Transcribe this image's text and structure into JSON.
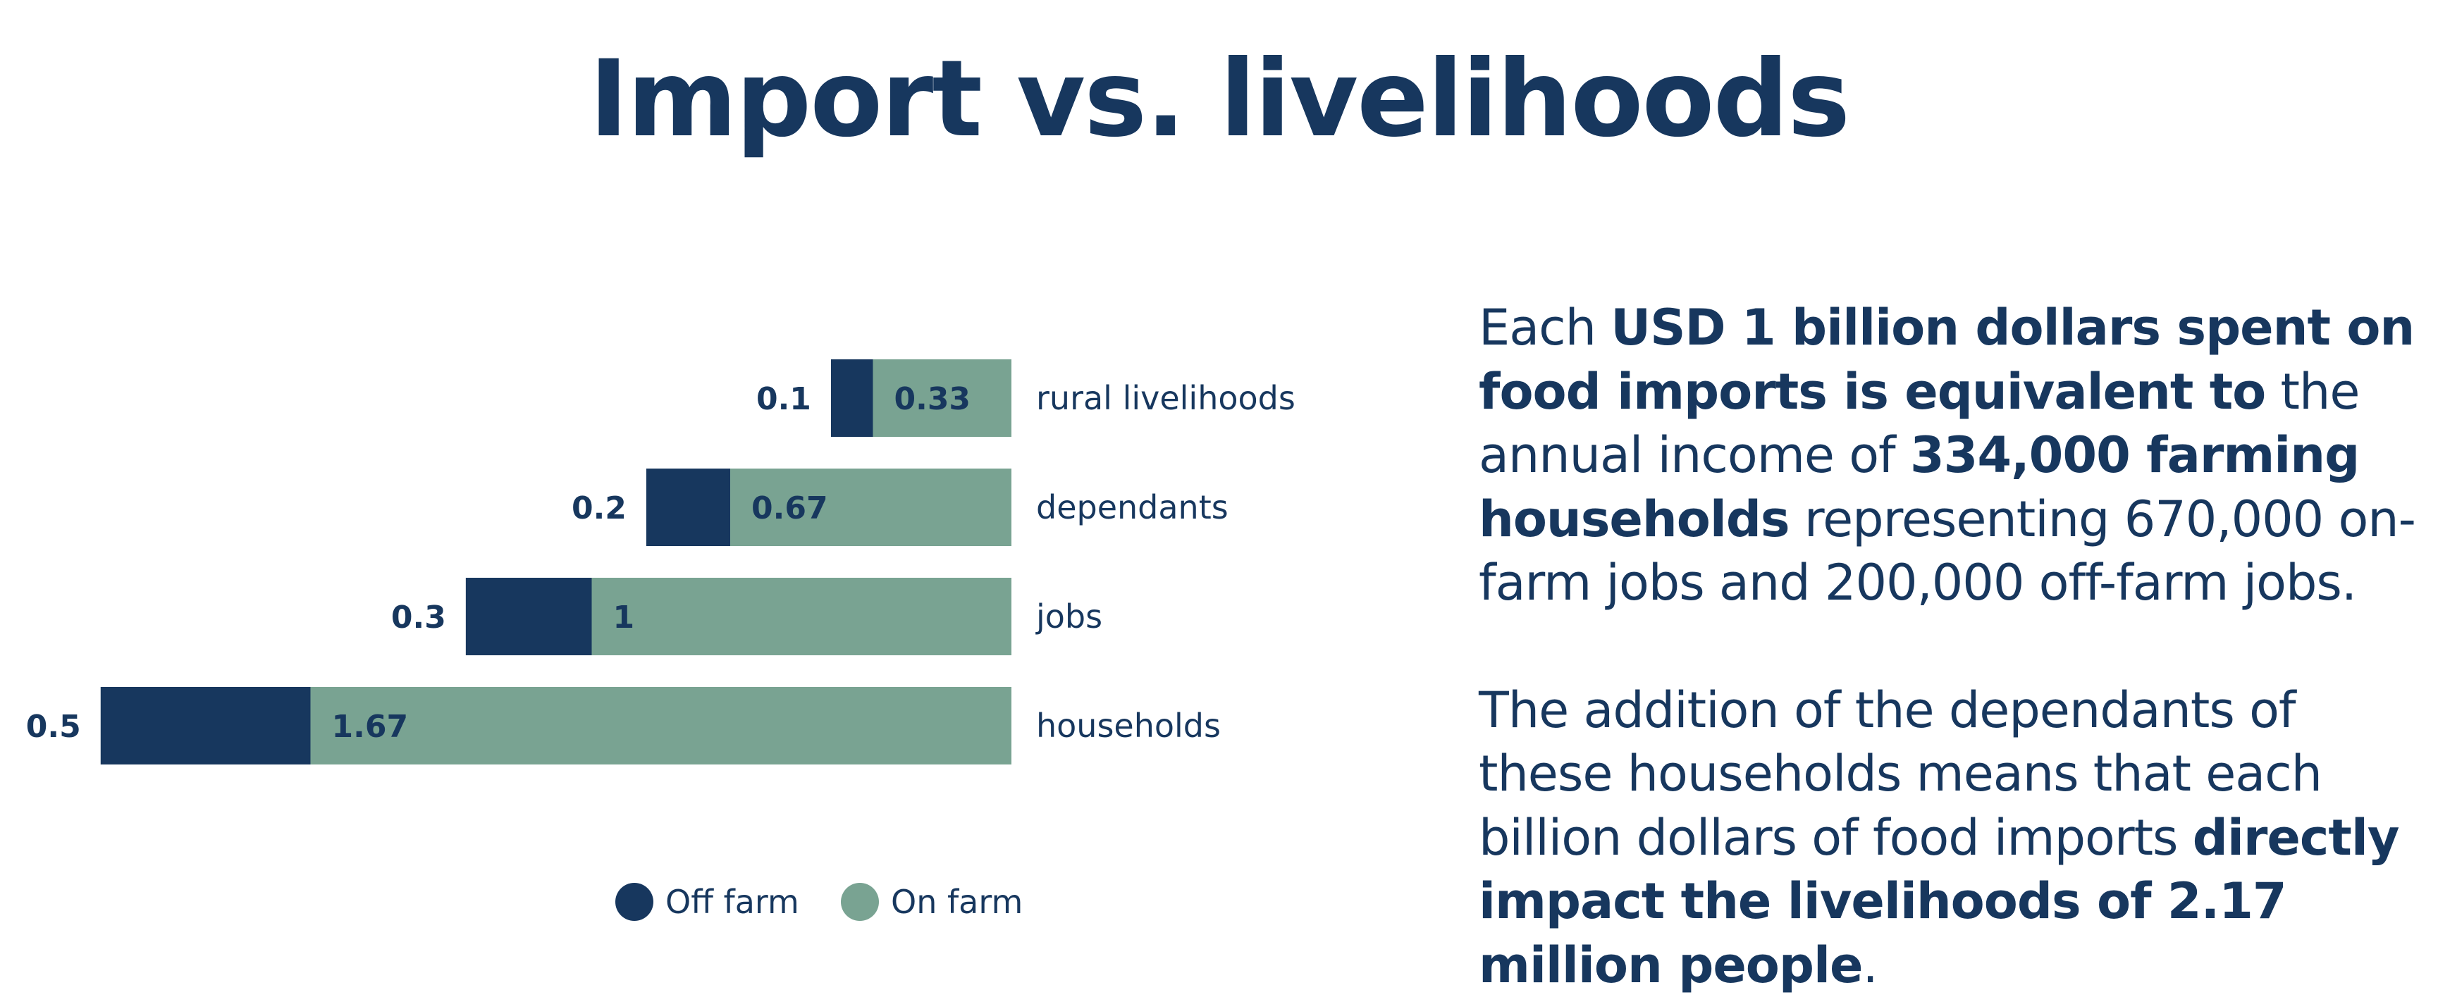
{
  "title": "Import vs. livelihoods",
  "colors": {
    "off_farm": "#17375e",
    "on_farm": "#79a392",
    "text": "#17375e"
  },
  "chart_data": {
    "type": "bar",
    "orientation": "horizontal",
    "stacked": true,
    "categories": [
      "rural livelihoods",
      "dependants",
      "jobs",
      "households"
    ],
    "series": [
      {
        "name": "Off farm",
        "values": [
          0.1,
          0.2,
          0.3,
          0.5
        ],
        "labels": [
          "0.1",
          "0.2",
          "0.3",
          "0.5"
        ],
        "color": "#17375e"
      },
      {
        "name": "On farm",
        "values": [
          0.33,
          0.67,
          1,
          1.67
        ],
        "labels": [
          "0.33",
          "0.67",
          "1",
          "1.67"
        ],
        "color": "#79a392"
      }
    ],
    "legend_position": "bottom",
    "grid": false,
    "xlabel": "",
    "ylabel": ""
  },
  "description": {
    "p1": {
      "t1": "Each ",
      "b1": "USD 1 billion dollars spent on food imports is equivalent to",
      "t2": " the annual income of ",
      "b2": "334,000 farming households",
      "t3": " representing 670,000 on-farm jobs and 200,000 off-farm jobs."
    },
    "p2": {
      "t1": "The addition of the dependants of these households means that each billion dollars of food imports ",
      "b1": "directly impact the livelihoods of 2.17 million people",
      "t2": "."
    }
  }
}
